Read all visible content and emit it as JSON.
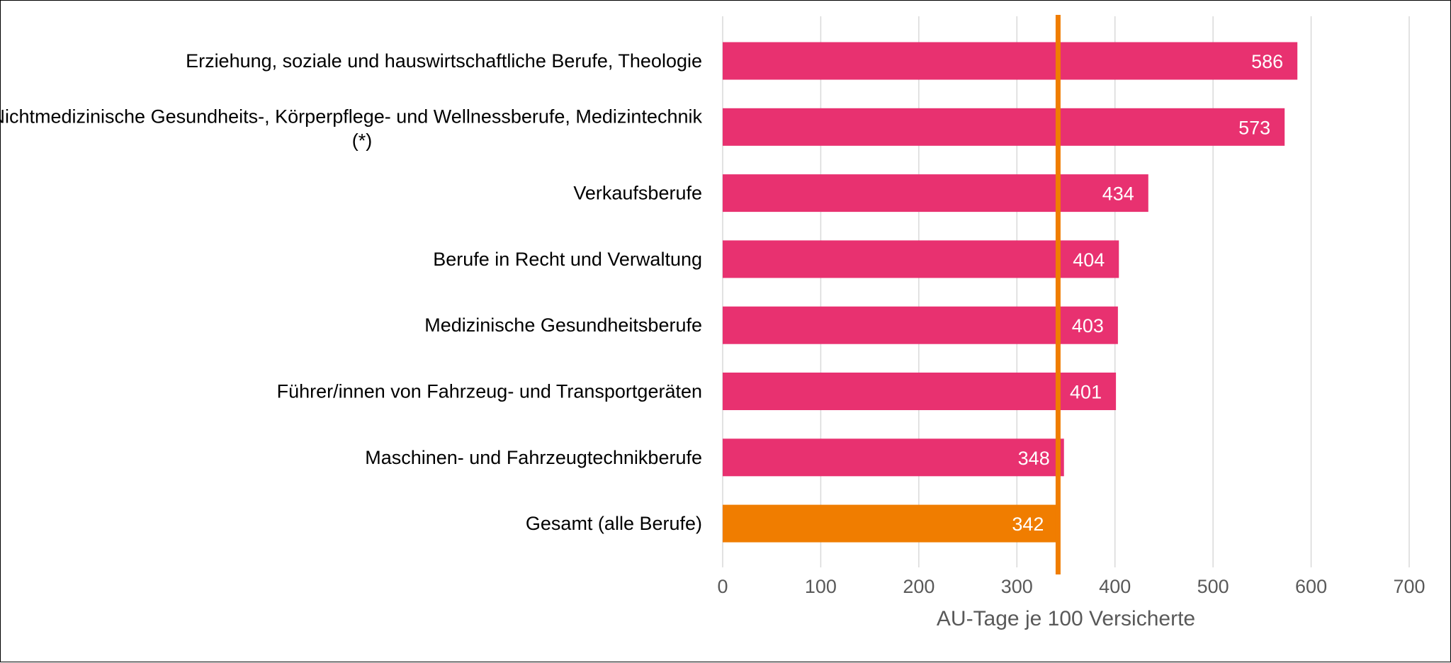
{
  "chart_data": {
    "type": "bar",
    "orientation": "horizontal",
    "categories": [
      "Erziehung, soziale und hauswirtschaftliche Berufe, Theologie",
      "Nichtmedizinische Gesundheits-, Körperpflege- und Wellnessberufe, Medizintechnik (*)",
      "Verkaufsberufe",
      "Berufe in Recht und Verwaltung",
      "Medizinische Gesundheitsberufe",
      "Führer/innen von Fahrzeug- und Transportgeräten",
      "Maschinen- und Fahrzeugtechnikberufe",
      "Gesamt (alle Berufe)"
    ],
    "category_lines": [
      [
        "Erziehung, soziale und hauswirtschaftliche Berufe, Theologie"
      ],
      [
        "Nichtmedizinische Gesundheits-, Körperpflege- und Wellnessberufe, Medizintechnik",
        "(*)"
      ],
      [
        "Verkaufsberufe"
      ],
      [
        "Berufe in Recht und Verwaltung"
      ],
      [
        "Medizinische Gesundheitsberufe"
      ],
      [
        "Führer/innen von Fahrzeug- und Transportgeräten"
      ],
      [
        "Maschinen- und Fahrzeugtechnikberufe"
      ],
      [
        "Gesamt (alle Berufe)"
      ]
    ],
    "values": [
      586,
      573,
      434,
      404,
      403,
      401,
      348,
      342
    ],
    "value_labels": [
      "586",
      "573",
      "434",
      "404",
      "403",
      "401",
      "348",
      "342"
    ],
    "highlight_index": 7,
    "reference_line": 342,
    "xlabel": "AU-Tage je 100 Versicherte",
    "ylabel": "",
    "title": "",
    "xlim": [
      0,
      700
    ],
    "xticks": [
      0,
      100,
      200,
      300,
      400,
      500,
      600,
      700
    ],
    "xtick_labels": [
      "0",
      "100",
      "200",
      "300",
      "400",
      "500",
      "600",
      "700"
    ],
    "grid": "vertical",
    "legend": "none",
    "colors": {
      "bar": "#E83170",
      "highlight_bar": "#F07D00",
      "reference_line": "#F07D00",
      "grid": "#D9D9D9",
      "tick_text": "#595959",
      "value_text": "#FFFFFF",
      "category_text": "#000000"
    }
  }
}
